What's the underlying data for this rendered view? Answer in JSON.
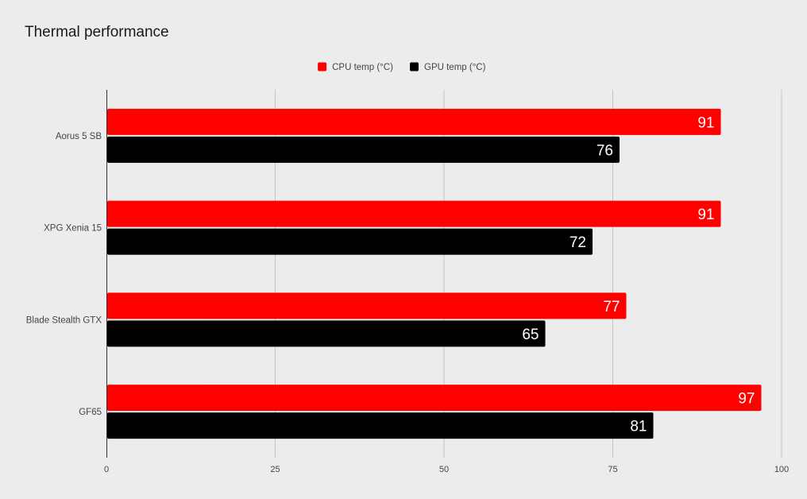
{
  "chart_data": {
    "type": "bar",
    "orientation": "horizontal",
    "title": "Thermal performance",
    "categories": [
      "Aorus 5 SB",
      "XPG Xenia 15",
      "Blade Stealth GTX",
      "GF65"
    ],
    "series": [
      {
        "name": "CPU temp (°C)",
        "color": "#ff0000",
        "values": [
          91,
          91,
          77,
          97
        ]
      },
      {
        "name": "GPU temp (°C)",
        "color": "#000000",
        "values": [
          76,
          72,
          65,
          81
        ]
      }
    ],
    "xlim": [
      0,
      100
    ],
    "xticks": [
      0,
      25,
      50,
      75,
      100
    ],
    "xlabel": "",
    "ylabel": "",
    "grid": true,
    "legend_position": "top-center",
    "data_labels": true
  }
}
